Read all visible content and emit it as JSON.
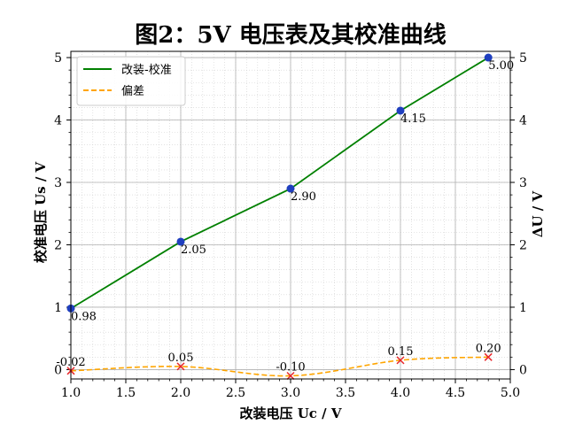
{
  "chart_data": {
    "type": "line",
    "title": "图2：5V 电压表及其校准曲线",
    "xlabel": "改装电压 Uc / V",
    "ylabel": "校准电压 Us / V",
    "y2label": "ΔU / V",
    "xlim": [
      1.0,
      5.0
    ],
    "ylim": [
      -0.15,
      5.1
    ],
    "xticks": [
      1.0,
      1.5,
      2.0,
      2.5,
      3.0,
      3.5,
      4.0,
      4.5,
      5.0
    ],
    "yticks": [
      0,
      1,
      2,
      3,
      4,
      5
    ],
    "grid": true,
    "legend_position": "top-left",
    "series": [
      {
        "name": "改装-校准",
        "style": "solid",
        "color": "#008000",
        "marker_color": "#1f3fbf",
        "x": [
          1.0,
          2.0,
          3.0,
          4.0,
          4.8
        ],
        "y": [
          0.98,
          2.05,
          2.9,
          4.15,
          5.0
        ],
        "labels": [
          "0.98",
          "2.05",
          "2.90",
          "4.15",
          "5.00"
        ]
      },
      {
        "name": "偏差",
        "style": "dashed",
        "color": "#ffa500",
        "marker_color": "#e8262a",
        "x": [
          1.0,
          2.0,
          3.0,
          4.0,
          4.8
        ],
        "y": [
          -0.02,
          0.05,
          -0.1,
          0.15,
          0.2
        ],
        "labels": [
          "-0.02",
          "0.05",
          "-0.10",
          "0.15",
          "0.20"
        ]
      }
    ]
  }
}
